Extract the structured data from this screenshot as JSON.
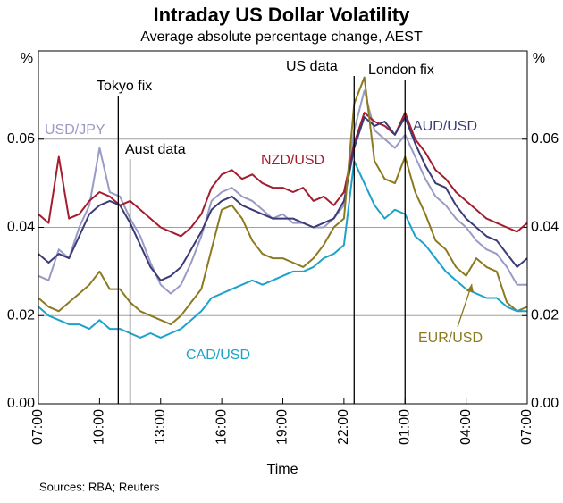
{
  "chart_data": {
    "type": "line",
    "title": "Intraday US Dollar Volatility",
    "subtitle": "Average absolute percentage change, AEST",
    "x_label": "Time",
    "y_unit": "%",
    "source": "Sources: RBA; Reuters",
    "x": [
      0,
      0.5,
      1,
      1.5,
      2,
      2.5,
      3,
      3.5,
      4,
      4.5,
      5,
      5.5,
      6,
      6.5,
      7,
      7.5,
      8,
      8.5,
      9,
      9.5,
      10,
      10.5,
      11,
      11.5,
      12,
      12.5,
      13,
      13.5,
      14,
      14.5,
      15,
      15.5,
      16,
      16.5,
      17,
      17.5,
      18,
      18.5,
      19,
      19.5,
      20,
      20.5,
      21,
      21.5,
      22,
      22.5,
      23,
      23.5,
      24
    ],
    "xlim": [
      0,
      24
    ],
    "xticks": [
      {
        "value": 0,
        "label": "07:00"
      },
      {
        "value": 3,
        "label": "10:00"
      },
      {
        "value": 6,
        "label": "13:00"
      },
      {
        "value": 9,
        "label": "16:00"
      },
      {
        "value": 12,
        "label": "19:00"
      },
      {
        "value": 15,
        "label": "22:00"
      },
      {
        "value": 18,
        "label": "01:00"
      },
      {
        "value": 21,
        "label": "04:00"
      },
      {
        "value": 24,
        "label": "07:00"
      }
    ],
    "ylim": [
      0,
      0.08
    ],
    "yticks": [
      {
        "value": 0,
        "label": "0.00"
      },
      0.02,
      0.04,
      0.06
    ],
    "grid": true,
    "annotations": [
      {
        "text": "Tokyo fix",
        "x": 3.92
      },
      {
        "text": "Aust data",
        "x": 4.5
      },
      {
        "text": "US data",
        "x": 15.5
      },
      {
        "text": "London fix",
        "x": 18
      }
    ],
    "series": [
      {
        "name": "USD/JPY",
        "color": "#9a9ac6",
        "values": [
          0.029,
          0.028,
          0.035,
          0.033,
          0.04,
          0.045,
          0.058,
          0.048,
          0.047,
          0.042,
          0.038,
          0.032,
          0.027,
          0.025,
          0.027,
          0.032,
          0.038,
          0.046,
          0.048,
          0.049,
          0.047,
          0.046,
          0.044,
          0.042,
          0.043,
          0.041,
          0.041,
          0.04,
          0.04,
          0.042,
          0.045,
          0.062,
          0.071,
          0.062,
          0.06,
          0.058,
          0.061,
          0.056,
          0.051,
          0.047,
          0.045,
          0.042,
          0.04,
          0.037,
          0.035,
          0.034,
          0.031,
          0.027,
          0.027
        ]
      },
      {
        "name": "NZD/USD",
        "color": "#a31d2e",
        "values": [
          0.043,
          0.041,
          0.056,
          0.042,
          0.043,
          0.046,
          0.048,
          0.047,
          0.045,
          0.046,
          0.044,
          0.042,
          0.04,
          0.039,
          0.038,
          0.04,
          0.043,
          0.049,
          0.052,
          0.053,
          0.051,
          0.052,
          0.05,
          0.049,
          0.049,
          0.048,
          0.049,
          0.046,
          0.047,
          0.045,
          0.048,
          0.059,
          0.066,
          0.064,
          0.063,
          0.061,
          0.066,
          0.06,
          0.057,
          0.053,
          0.051,
          0.048,
          0.046,
          0.044,
          0.042,
          0.041,
          0.04,
          0.039,
          0.041
        ]
      },
      {
        "name": "AUD/USD",
        "color": "#3b3b78",
        "values": [
          0.034,
          0.032,
          0.034,
          0.033,
          0.038,
          0.043,
          0.045,
          0.046,
          0.045,
          0.041,
          0.036,
          0.031,
          0.028,
          0.029,
          0.031,
          0.035,
          0.039,
          0.044,
          0.046,
          0.047,
          0.045,
          0.044,
          0.043,
          0.042,
          0.042,
          0.042,
          0.041,
          0.04,
          0.041,
          0.042,
          0.046,
          0.058,
          0.065,
          0.063,
          0.064,
          0.061,
          0.065,
          0.059,
          0.054,
          0.05,
          0.049,
          0.045,
          0.042,
          0.04,
          0.038,
          0.037,
          0.034,
          0.031,
          0.033
        ]
      },
      {
        "name": "EUR/USD",
        "color": "#8c7a20",
        "values": [
          0.024,
          0.022,
          0.021,
          0.023,
          0.025,
          0.027,
          0.03,
          0.026,
          0.026,
          0.023,
          0.021,
          0.02,
          0.019,
          0.018,
          0.02,
          0.023,
          0.026,
          0.035,
          0.044,
          0.045,
          0.042,
          0.037,
          0.034,
          0.033,
          0.033,
          0.032,
          0.031,
          0.033,
          0.036,
          0.04,
          0.042,
          0.068,
          0.074,
          0.055,
          0.051,
          0.05,
          0.056,
          0.048,
          0.043,
          0.037,
          0.035,
          0.031,
          0.029,
          0.033,
          0.031,
          0.03,
          0.023,
          0.021,
          0.022
        ]
      },
      {
        "name": "CAD/USD",
        "color": "#1ea2c8",
        "values": [
          0.022,
          0.02,
          0.019,
          0.018,
          0.018,
          0.017,
          0.019,
          0.017,
          0.017,
          0.016,
          0.015,
          0.016,
          0.015,
          0.016,
          0.017,
          0.019,
          0.021,
          0.024,
          0.025,
          0.026,
          0.027,
          0.028,
          0.027,
          0.028,
          0.029,
          0.03,
          0.03,
          0.031,
          0.033,
          0.034,
          0.036,
          0.055,
          0.05,
          0.045,
          0.042,
          0.044,
          0.043,
          0.038,
          0.036,
          0.033,
          0.03,
          0.028,
          0.026,
          0.025,
          0.024,
          0.024,
          0.022,
          0.021,
          0.021
        ]
      }
    ]
  }
}
